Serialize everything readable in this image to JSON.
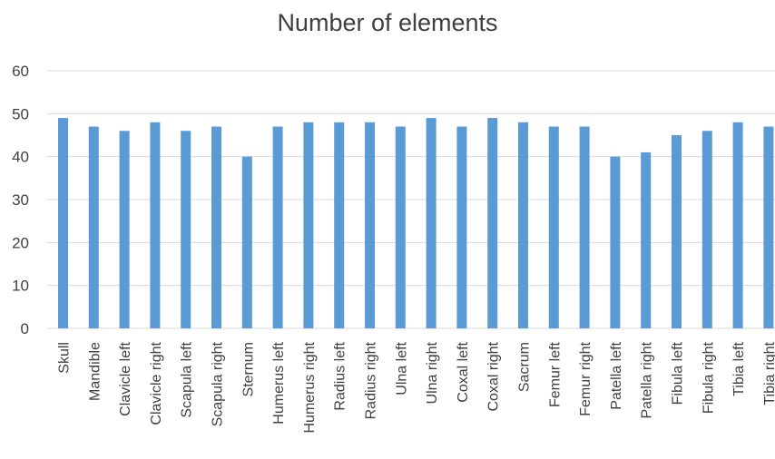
{
  "chart_data": {
    "type": "bar",
    "title": "Number of elements",
    "xlabel": "",
    "ylabel": "",
    "categories": [
      "Skull",
      "Mandible",
      "Clavicle left",
      "Clavicle right",
      "Scapula left",
      "Scapula right",
      "Sternum",
      "Humerus left",
      "Humerus right",
      "Radius left",
      "Radius right",
      "Ulna left",
      "Ulna right",
      "Coxal left",
      "Coxal right",
      "Sacrum",
      "Femur left",
      "Femur right",
      "Patella left",
      "Patella right",
      "Fibula left",
      "Fibula right",
      "Tibia left",
      "Tibia right"
    ],
    "values": [
      49,
      47,
      46,
      48,
      46,
      47,
      40,
      47,
      48,
      48,
      48,
      47,
      49,
      47,
      49,
      48,
      47,
      47,
      40,
      41,
      45,
      46,
      48,
      47
    ],
    "ylim": [
      0,
      60
    ],
    "yticks": [
      0,
      10,
      20,
      30,
      40,
      50,
      60
    ],
    "grid": true,
    "legend": "none",
    "bar_color": "#5B9BD5",
    "grid_color": "#d9d9d9",
    "text_color": "#404040"
  }
}
